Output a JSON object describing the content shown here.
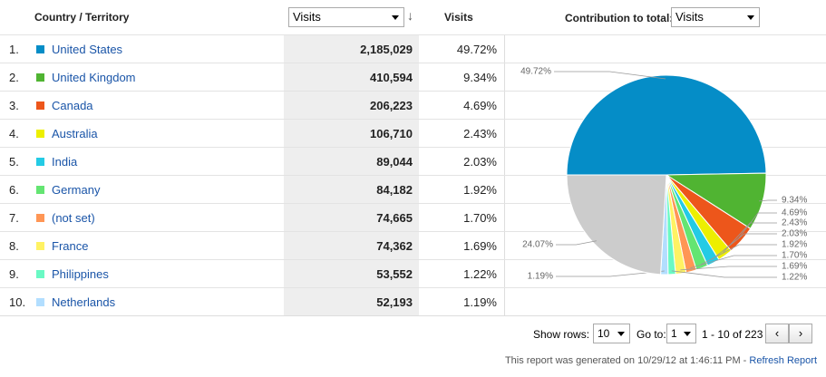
{
  "table": {
    "header": {
      "country": "Country / Territory",
      "sort_select": "Visits",
      "visits": "Visits",
      "contribution_label": "Contribution to total:",
      "contribution_select": "Visits"
    },
    "rows": [
      {
        "rank": "1.",
        "country": "United States",
        "visits": "2,185,029",
        "percent": "49.72%"
      },
      {
        "rank": "2.",
        "country": "United Kingdom",
        "visits": "410,594",
        "percent": "9.34%"
      },
      {
        "rank": "3.",
        "country": "Canada",
        "visits": "206,223",
        "percent": "4.69%"
      },
      {
        "rank": "4.",
        "country": "Australia",
        "visits": "106,710",
        "percent": "2.43%"
      },
      {
        "rank": "5.",
        "country": "India",
        "visits": "89,044",
        "percent": "2.03%"
      },
      {
        "rank": "6.",
        "country": "Germany",
        "visits": "84,182",
        "percent": "1.92%"
      },
      {
        "rank": "7.",
        "country": "(not set)",
        "visits": "74,665",
        "percent": "1.70%"
      },
      {
        "rank": "8.",
        "country": "France",
        "visits": "74,362",
        "percent": "1.69%"
      },
      {
        "rank": "9.",
        "country": "Philippines",
        "visits": "53,552",
        "percent": "1.22%"
      },
      {
        "rank": "10.",
        "country": "Netherlands",
        "visits": "52,193",
        "percent": "1.19%"
      }
    ]
  },
  "chart_data": {
    "type": "pie",
    "values": [
      49.72,
      9.34,
      4.69,
      2.43,
      2.03,
      1.92,
      1.7,
      1.69,
      1.22,
      1.19,
      24.07
    ],
    "value_labels": [
      "49.72%",
      "9.34%",
      "4.69%",
      "2.43%",
      "2.03%",
      "1.92%",
      "1.70%",
      "1.69%",
      "1.22%",
      "1.19%",
      "24.07%"
    ],
    "colors": [
      "#058dc7",
      "#50b432",
      "#ed561b",
      "#edef00",
      "#24cbe5",
      "#64e572",
      "#ff9655",
      "#fff263",
      "#6af9c4",
      "#b2deff",
      "#cccccc"
    ]
  },
  "footer": {
    "show_rows_label": "Show rows:",
    "show_rows_value": "10",
    "goto_label": "Go to:",
    "goto_value": "1",
    "range": "1 - 10 of 223",
    "generated": "This report was generated on 10/29/12 at 1:46:11 PM - ",
    "refresh": "Refresh Report"
  }
}
